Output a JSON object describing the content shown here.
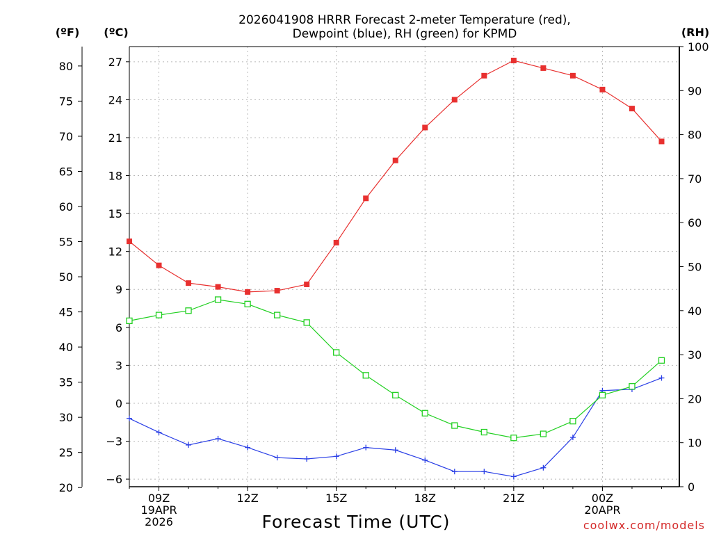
{
  "chart_data": {
    "type": "line",
    "title_lines": [
      "2026041908 HRRR Forecast 2-meter Temperature (red),",
      "Dewpoint (blue), RH (green) for KPMD"
    ],
    "xlabel": "Forecast Time (UTC)",
    "credit": "coolwx.com/models",
    "x_hours": [
      8,
      9,
      10,
      11,
      12,
      13,
      14,
      15,
      16,
      17,
      18,
      19,
      20,
      21,
      22,
      23,
      24,
      25,
      26
    ],
    "x_range": [
      8,
      26.6
    ],
    "x_ticks": [
      {
        "hour": 9,
        "lines": [
          "09Z",
          "19APR",
          "2026"
        ]
      },
      {
        "hour": 12,
        "lines": [
          "12Z"
        ]
      },
      {
        "hour": 15,
        "lines": [
          "15Z"
        ]
      },
      {
        "hour": 18,
        "lines": [
          "18Z"
        ]
      },
      {
        "hour": 21,
        "lines": [
          "21Z"
        ]
      },
      {
        "hour": 24,
        "lines": [
          "00Z",
          "20APR"
        ]
      }
    ],
    "axes": {
      "celsius": {
        "unit_label": "(ºC)",
        "range": [
          -6.6,
          28.2
        ],
        "ticks": [
          27,
          24,
          21,
          18,
          15,
          12,
          9,
          6,
          3,
          0,
          -3,
          -6
        ]
      },
      "fahrenheit": {
        "unit_label": "(ºF)",
        "ticks": [
          80,
          75,
          70,
          65,
          60,
          55,
          50,
          45,
          40,
          35,
          30,
          25,
          20
        ]
      },
      "rh": {
        "unit_label": "(RH)",
        "range": [
          0,
          100
        ],
        "ticks": [
          100,
          90,
          80,
          70,
          60,
          50,
          40,
          30,
          20,
          10,
          0
        ]
      }
    },
    "series": [
      {
        "name": "Temperature",
        "units": "C",
        "color": "#e8302f",
        "marker": "filled-square",
        "values": [
          12.8,
          10.9,
          9.5,
          9.2,
          8.8,
          8.9,
          9.4,
          12.7,
          16.2,
          19.2,
          21.8,
          24.0,
          25.9,
          27.1,
          26.5,
          25.9,
          24.8,
          23.3,
          20.7
        ]
      },
      {
        "name": "Dewpoint",
        "units": "C",
        "color": "#2a3fe6",
        "marker": "plus",
        "values": [
          -1.2,
          -2.3,
          -3.3,
          -2.8,
          -3.5,
          -4.3,
          -4.4,
          -4.2,
          -3.5,
          -3.7,
          -4.5,
          -5.4,
          -5.4,
          -5.8,
          -5.1,
          -2.7,
          1.0,
          1.1,
          2.0
        ]
      },
      {
        "name": "RH",
        "units": "%",
        "color": "#23d023",
        "marker": "open-square",
        "values": [
          37.7,
          39.0,
          40.0,
          42.5,
          41.5,
          39.0,
          37.3,
          30.5,
          25.3,
          20.8,
          16.7,
          13.9,
          12.4,
          11.1,
          12.0,
          14.9,
          20.8,
          22.8,
          28.7
        ]
      }
    ]
  }
}
